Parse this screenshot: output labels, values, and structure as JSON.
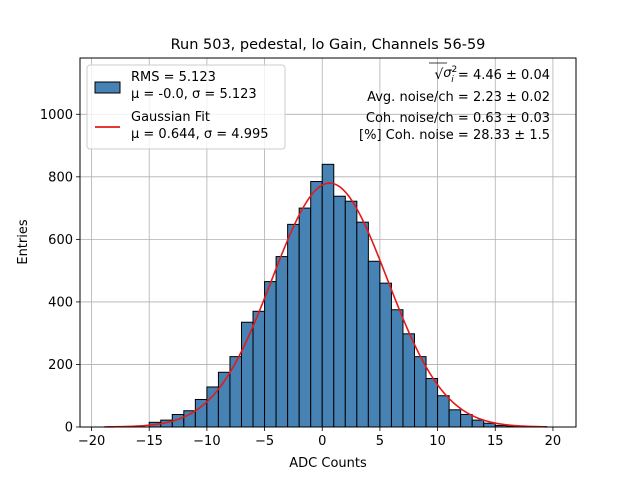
{
  "chart_data": {
    "type": "bar",
    "title": "Run 503, pedestal, lo Gain, Channels 56-59",
    "xlabel": "ADC Counts",
    "ylabel": "Entries",
    "xlim": [
      -21,
      22
    ],
    "ylim": [
      0,
      1180
    ],
    "xticks": [
      -20,
      -15,
      -10,
      -5,
      0,
      5,
      10,
      15,
      20
    ],
    "yticks": [
      0,
      200,
      400,
      600,
      800,
      1000
    ],
    "grid": true,
    "legend_position": "top-left",
    "bin_width": 1,
    "bin_left_edges": [
      -15,
      -14,
      -13,
      -12,
      -11,
      -10,
      -9,
      -8,
      -7,
      -6,
      -5,
      -4,
      -3,
      -2,
      -1,
      0,
      1,
      2,
      3,
      4,
      5,
      6,
      7,
      8,
      9,
      10,
      11,
      12,
      13,
      14,
      15,
      16
    ],
    "series": [
      {
        "name": "RMS = 5.123",
        "name_line2": "μ = -0.0, σ = 5.123",
        "kind": "histogram",
        "color": "#4682b4",
        "edge_color": "#000000",
        "values": [
          15,
          22,
          40,
          52,
          88,
          128,
          175,
          225,
          335,
          370,
          465,
          545,
          648,
          700,
          785,
          840,
          738,
          722,
          655,
          530,
          460,
          375,
          298,
          225,
          155,
          100,
          55,
          40,
          22,
          12,
          5,
          3
        ]
      },
      {
        "name": "Gaussian Fit",
        "name_line2": "μ = 0.644, σ = 4.995",
        "kind": "line",
        "color": "#e31a1c",
        "mu": 0.644,
        "sigma": 4.995,
        "amplitude": 780,
        "x_range": [
          -18.9,
          19.5
        ]
      }
    ],
    "annotations": [
      {
        "lhs_symbol": "√",
        "lhs_var": "σ",
        "lhs_sub": "i",
        "lhs_sup": "2",
        "rhs": " = 4.46 ± 0.04"
      },
      {
        "text": "Avg. noise/ch = 2.23 ± 0.02"
      },
      {
        "text": "Coh. noise/ch = 0.63 ± 0.03"
      },
      {
        "text": "[%] Coh. noise = 28.33 ± 1.5"
      }
    ]
  }
}
